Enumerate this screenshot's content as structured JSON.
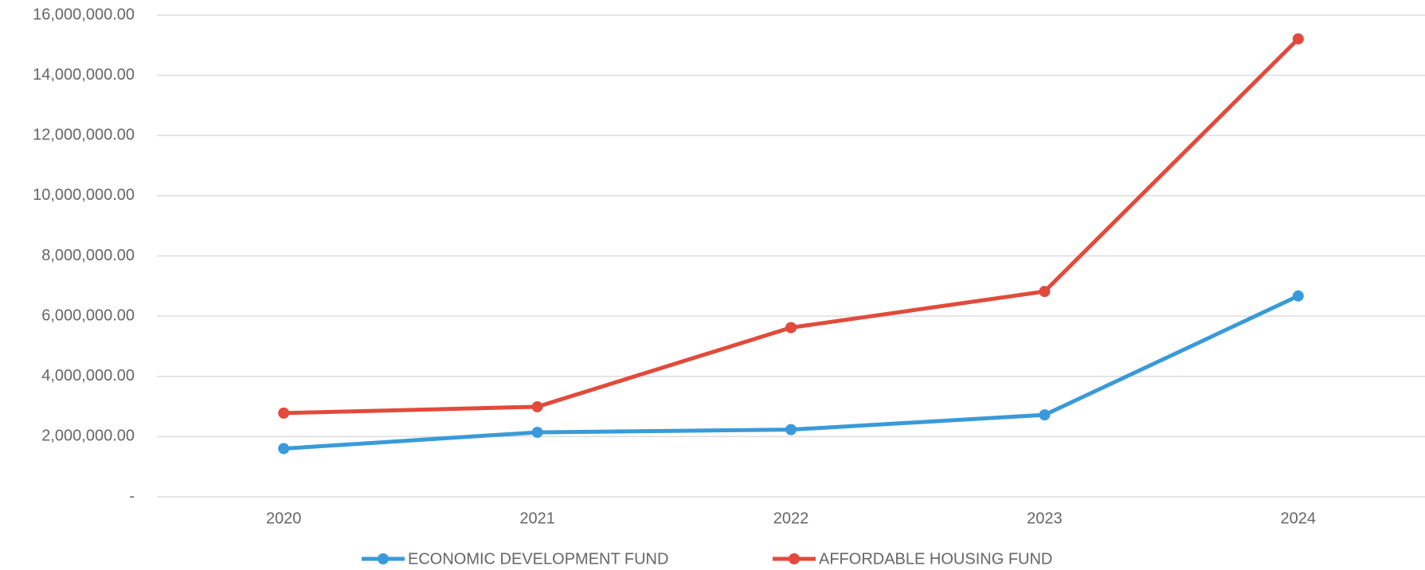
{
  "chart_data": {
    "type": "line",
    "categories": [
      "2020",
      "2021",
      "2022",
      "2023",
      "2024"
    ],
    "series": [
      {
        "name": "ECONOMIC DEVELOPMENT FUND",
        "color": "#3a9ad9",
        "values": [
          1600000,
          2140000,
          2230000,
          2720000,
          6670000
        ]
      },
      {
        "name": "AFFORDABLE HOUSING FUND",
        "color": "#e24a3b",
        "values": [
          2780000,
          2990000,
          5620000,
          6820000,
          15210000
        ]
      }
    ],
    "ylim": [
      0,
      16000000
    ],
    "yticks": [
      {
        "value": 0,
        "label": "-"
      },
      {
        "value": 2000000,
        "label": "2,000,000.00"
      },
      {
        "value": 4000000,
        "label": "4,000,000.00"
      },
      {
        "value": 6000000,
        "label": "6,000,000.00"
      },
      {
        "value": 8000000,
        "label": "8,000,000.00"
      },
      {
        "value": 10000000,
        "label": "10,000,000.00"
      },
      {
        "value": 12000000,
        "label": "12,000,000.00"
      },
      {
        "value": 14000000,
        "label": "14,000,000.00"
      },
      {
        "value": 16000000,
        "label": "16,000,000.00"
      }
    ],
    "grid": true,
    "legend": "bottom"
  }
}
